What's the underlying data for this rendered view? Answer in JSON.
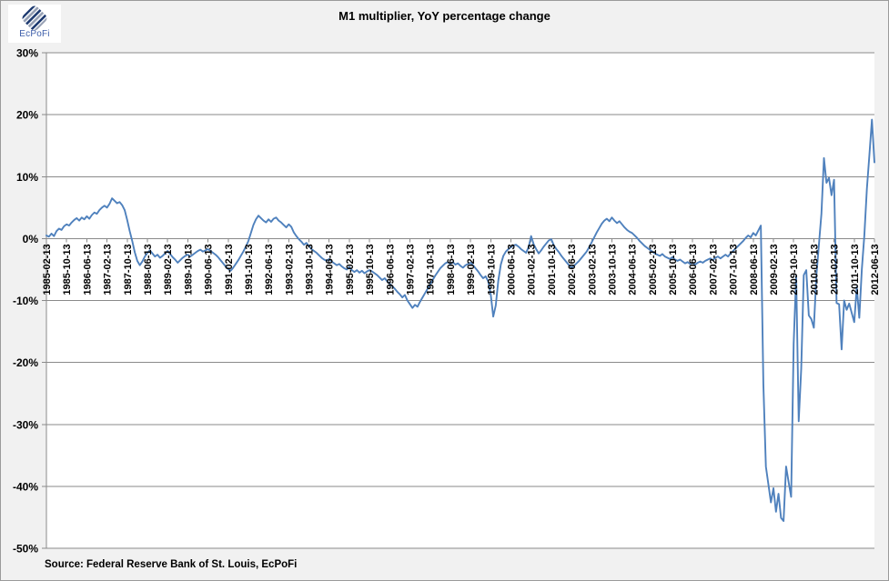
{
  "logo": {
    "text": "EcPoFi"
  },
  "header": {
    "title": "M1 multiplier, YoY percentage change"
  },
  "footer": {
    "source_note": "Source: Federal Reserve Bank of St. Louis, EcPoFi"
  },
  "colors": {
    "line": "#4F81BD",
    "gridline": "#8a8a8a",
    "plot_background": "#ffffff",
    "chart_background": "#f1f1f1",
    "label_text": "#000000",
    "logo_blue": "#3b5ca9"
  },
  "chart_data": {
    "type": "line",
    "title": "M1 multiplier, YoY percentage change",
    "series_name": "M1 multiplier, YoY percentage change",
    "x_start": "1985-02-13",
    "x_end": "2012-06-13",
    "x_tick_interval_months": 8,
    "x_tick_labels": [
      "1985-02-13",
      "1985-10-13",
      "1986-06-13",
      "1987-02-13",
      "1987-10-13",
      "1988-06-13",
      "1989-02-13",
      "1989-10-13",
      "1990-06-13",
      "1991-02-13",
      "1991-10-13",
      "1992-06-13",
      "1993-02-13",
      "1993-10-13",
      "1994-06-13",
      "1995-02-13",
      "1995-10-13",
      "1996-06-13",
      "1997-02-13",
      "1997-10-13",
      "1998-06-13",
      "1999-02-13",
      "1999-10-13",
      "2000-06-13",
      "2001-02-13",
      "2001-10-13",
      "2002-06-13",
      "2003-02-13",
      "2003-10-13",
      "2004-06-13",
      "2005-02-13",
      "2005-10-13",
      "2006-06-13",
      "2007-02-13",
      "2007-10-13",
      "2008-06-13",
      "2009-02-13",
      "2009-10-13",
      "2010-06-13",
      "2011-02-13",
      "2011-10-13",
      "2012-06-13"
    ],
    "y_tick_labels": [
      "30%",
      "20%",
      "10%",
      "0%",
      "-10%",
      "-20%",
      "-30%",
      "-40%",
      "-50%"
    ],
    "y_tick_values": [
      30,
      20,
      10,
      0,
      -10,
      -20,
      -30,
      -40,
      -50
    ],
    "ylim": [
      -50,
      30
    ],
    "grid": "horizontal",
    "legend": "none",
    "monthly_values": [
      0.5,
      0.3,
      0.8,
      0.4,
      1.2,
      1.6,
      1.4,
      2.0,
      2.3,
      2.1,
      2.6,
      3.0,
      3.3,
      2.9,
      3.4,
      3.1,
      3.6,
      3.2,
      3.8,
      4.2,
      4.0,
      4.6,
      5.0,
      5.3,
      5.0,
      5.6,
      6.5,
      6.1,
      5.7,
      5.9,
      5.4,
      4.6,
      3.0,
      1.2,
      -0.4,
      -2.2,
      -3.6,
      -4.3,
      -3.7,
      -2.9,
      -2.3,
      -1.9,
      -2.4,
      -2.9,
      -2.6,
      -3.1,
      -2.8,
      -2.4,
      -2.0,
      -2.5,
      -3.0,
      -3.4,
      -3.9,
      -3.5,
      -3.1,
      -2.8,
      -2.6,
      -2.9,
      -2.6,
      -2.3,
      -2.0,
      -1.8,
      -2.1,
      -1.9,
      -1.7,
      -2.0,
      -2.3,
      -2.6,
      -3.0,
      -3.5,
      -4.0,
      -4.5,
      -4.9,
      -5.2,
      -4.7,
      -4.1,
      -3.5,
      -2.8,
      -2.1,
      -1.3,
      -0.4,
      0.9,
      2.2,
      3.1,
      3.7,
      3.3,
      2.9,
      2.6,
      3.1,
      2.7,
      3.2,
      3.4,
      2.9,
      2.6,
      2.2,
      1.8,
      2.3,
      1.9,
      1.0,
      0.4,
      -0.1,
      -0.5,
      -1.0,
      -0.7,
      -1.2,
      -1.7,
      -2.0,
      -2.3,
      -2.7,
      -3.1,
      -3.4,
      -3.6,
      -3.3,
      -3.7,
      -4.0,
      -4.3,
      -4.1,
      -4.5,
      -4.8,
      -5.0,
      -4.6,
      -5.1,
      -5.4,
      -5.1,
      -5.5,
      -5.2,
      -5.6,
      -5.3,
      -5.1,
      -5.3,
      -5.6,
      -5.9,
      -6.3,
      -6.7,
      -6.4,
      -6.9,
      -7.3,
      -7.7,
      -8.1,
      -8.6,
      -9.0,
      -9.5,
      -9.1,
      -10.0,
      -10.6,
      -11.2,
      -10.7,
      -11.0,
      -10.2,
      -9.5,
      -8.8,
      -8.1,
      -7.4,
      -6.7,
      -6.0,
      -5.4,
      -4.8,
      -4.4,
      -4.0,
      -3.8,
      -4.1,
      -3.8,
      -4.2,
      -4.0,
      -4.4,
      -4.7,
      -4.3,
      -4.1,
      -3.9,
      -4.3,
      -4.8,
      -5.3,
      -5.9,
      -6.4,
      -6.1,
      -6.9,
      -9.0,
      -12.6,
      -10.8,
      -6.8,
      -4.2,
      -2.8,
      -2.1,
      -1.7,
      -1.4,
      -1.1,
      -1.0,
      -1.3,
      -1.7,
      -2.0,
      -2.3,
      -1.4,
      0.4,
      -0.9,
      -1.7,
      -2.4,
      -1.9,
      -1.3,
      -0.8,
      -0.3,
      -0.1,
      -1.1,
      -1.7,
      -2.2,
      -2.8,
      -3.3,
      -3.8,
      -4.3,
      -4.7,
      -4.4,
      -4.0,
      -3.6,
      -3.1,
      -2.6,
      -2.1,
      -1.4,
      -0.6,
      0.2,
      1.0,
      1.7,
      2.4,
      2.9,
      3.2,
      2.8,
      3.4,
      2.9,
      2.5,
      2.8,
      2.3,
      1.8,
      1.4,
      1.1,
      0.9,
      0.5,
      0.1,
      -0.4,
      -0.8,
      -1.2,
      -1.5,
      -1.8,
      -2.1,
      -2.4,
      -2.6,
      -2.8,
      -2.5,
      -2.9,
      -3.1,
      -3.3,
      -3.0,
      -3.4,
      -3.6,
      -3.4,
      -3.7,
      -4.0,
      -3.8,
      -4.1,
      -3.9,
      -4.2,
      -3.9,
      -3.7,
      -3.9,
      -3.6,
      -3.4,
      -3.2,
      -3.5,
      -3.1,
      -2.9,
      -3.2,
      -2.9,
      -2.6,
      -2.9,
      -2.4,
      -2.0,
      -1.6,
      -1.2,
      -0.8,
      -0.4,
      0.1,
      0.5,
      0.2,
      0.9,
      0.5,
      1.3,
      2.1,
      -23.5,
      -36.8,
      -39.7,
      -42.6,
      -40.3,
      -44.1,
      -41.2,
      -45.1,
      -45.6,
      -36.8,
      -39.3,
      -41.7,
      -17.0,
      -6.0,
      -29.5,
      -21.0,
      -5.9,
      -5.1,
      -12.4,
      -13.0,
      -14.4,
      -6.0,
      -1.0,
      4.0,
      13.0,
      9.0,
      9.8,
      7.0,
      9.5,
      -10.4,
      -10.6,
      -17.9,
      -10.0,
      -11.5,
      -10.5,
      -12.0,
      -13.5,
      -7.8,
      -12.8,
      -5.0,
      0.5,
      8.0,
      13.5,
      19.2,
      12.3
    ]
  }
}
